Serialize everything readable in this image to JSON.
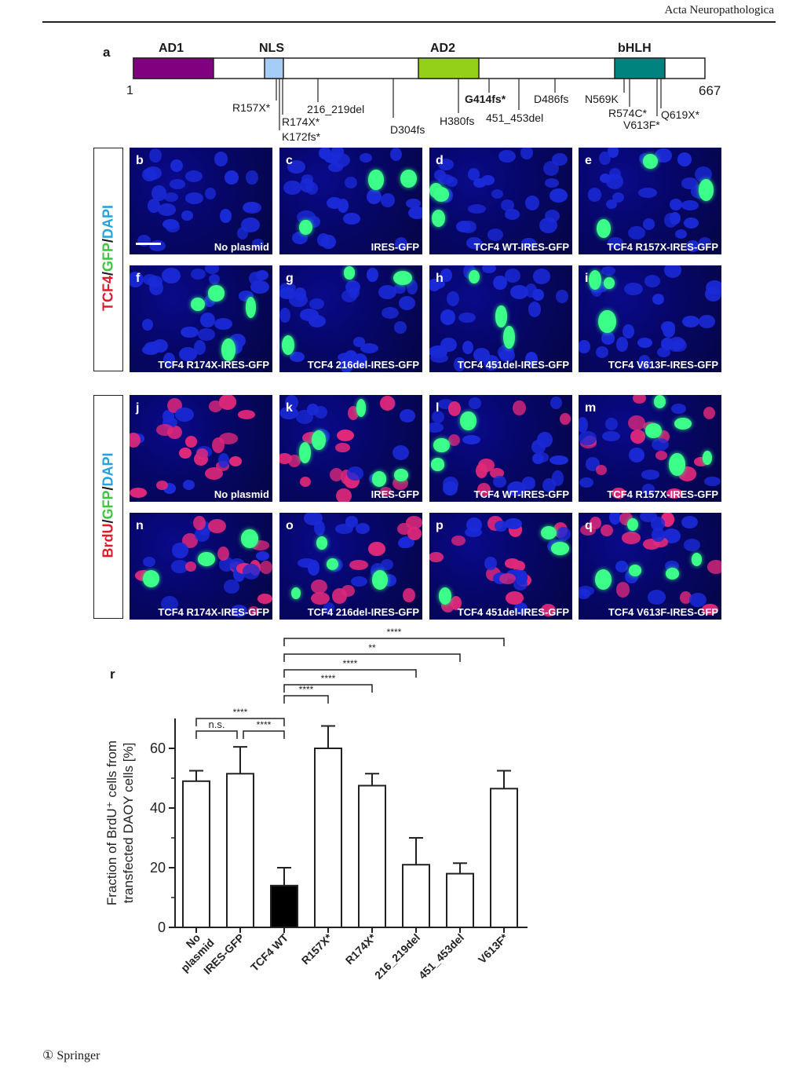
{
  "header": {
    "journal": "Acta Neuropathologica"
  },
  "panel_a": {
    "letter": "a",
    "start": "1",
    "end": "667",
    "domains": [
      {
        "name": "AD1",
        "color": "#800080"
      },
      {
        "name": "NLS",
        "color": "#a6cdf5"
      },
      {
        "name": "AD2",
        "color": "#94d01a"
      },
      {
        "name": "bHLH",
        "color": "#00827f"
      }
    ],
    "mutations": [
      "R157X*",
      "R174X*",
      "K172fs*",
      "216_219del",
      "D304fs",
      "H380fs",
      "G414fs*",
      "451_453del",
      "D486fs",
      "N569K",
      "R574C*",
      "V613F*",
      "Q619X*"
    ]
  },
  "stain1": {
    "tcf4": "TCF4",
    "sep1": "/",
    "gfp": "GFP",
    "sep2": "/",
    "dapi": "DAPI"
  },
  "stain2": {
    "brdu": "BrdU",
    "sep1": "/",
    "gfp": "GFP",
    "sep2": "/",
    "dapi": "DAPI"
  },
  "panels_row1": [
    {
      "letter": "b",
      "caption": "No plasmid"
    },
    {
      "letter": "c",
      "caption": "IRES-GFP"
    },
    {
      "letter": "d",
      "caption": "TCF4 WT-IRES-GFP"
    },
    {
      "letter": "e",
      "caption": "TCF4 R157X-IRES-GFP"
    }
  ],
  "panels_row2": [
    {
      "letter": "f",
      "caption": "TCF4  R174X-IRES-GFP"
    },
    {
      "letter": "g",
      "caption": "TCF4 216del-IRES-GFP"
    },
    {
      "letter": "h",
      "caption": "TCF4 451del-IRES-GFP"
    },
    {
      "letter": "i",
      "caption": "TCF4 V613F-IRES-GFP"
    }
  ],
  "panels_row3": [
    {
      "letter": "j",
      "caption": "No plasmid"
    },
    {
      "letter": "k",
      "caption": "IRES-GFP"
    },
    {
      "letter": "l",
      "caption": "TCF4 WT-IRES-GFP"
    },
    {
      "letter": "m",
      "caption": "TCF4 R157X-IRES-GFP"
    }
  ],
  "panels_row4": [
    {
      "letter": "n",
      "caption": "TCF4  R174X-IRES-GFP"
    },
    {
      "letter": "o",
      "caption": "TCF4 216del-IRES-GFP"
    },
    {
      "letter": "p",
      "caption": "TCF4 451del-IRES-GFP"
    },
    {
      "letter": "q",
      "caption": "TCF4 V613F-IRES-GFP"
    }
  ],
  "panel_r": {
    "letter": "r"
  },
  "chart_data": {
    "type": "bar",
    "categories": [
      "No plasmid",
      "IRES-GFP",
      "TCF4 WT",
      "R157X*",
      "R174X*",
      "216_219del",
      "451_453del",
      "V613F*"
    ],
    "category_lines": [
      [
        "No",
        "plasmid"
      ],
      [
        "IRES-GFP"
      ],
      [
        "TCF4 WT"
      ],
      [
        "R157X*"
      ],
      [
        "R174X*"
      ],
      [
        "216_219del"
      ],
      [
        "451_453del"
      ],
      [
        "V613F*"
      ]
    ],
    "values": [
      49,
      51.5,
      14,
      60,
      47.5,
      21,
      18,
      46.5
    ],
    "errors": [
      3.5,
      9,
      6,
      7.5,
      4,
      9,
      3.5,
      6
    ],
    "fills": [
      "#ffffff",
      "#ffffff",
      "#000000",
      "#ffffff",
      "#ffffff",
      "#ffffff",
      "#ffffff",
      "#ffffff"
    ],
    "ylabel_line1": "Fraction of BrdU⁺ cells from",
    "ylabel_line2": "transfected DAOY cells [%]",
    "ylim": [
      0,
      70
    ],
    "yticks": [
      0,
      20,
      40,
      60
    ],
    "significance": [
      {
        "from": 0,
        "to": 1,
        "label": "n.s."
      },
      {
        "from": 1,
        "to": 2,
        "label": "****"
      },
      {
        "from": 0,
        "to": 2,
        "label": "****"
      },
      {
        "from": 2,
        "to": 3,
        "label": "****"
      },
      {
        "from": 2,
        "to": 4,
        "label": "****"
      },
      {
        "from": 2,
        "to": 5,
        "label": "****"
      },
      {
        "from": 2,
        "to": 6,
        "label": "**"
      },
      {
        "from": 2,
        "to": 7,
        "label": "****"
      }
    ]
  },
  "footer": {
    "publisher": "Springer"
  }
}
